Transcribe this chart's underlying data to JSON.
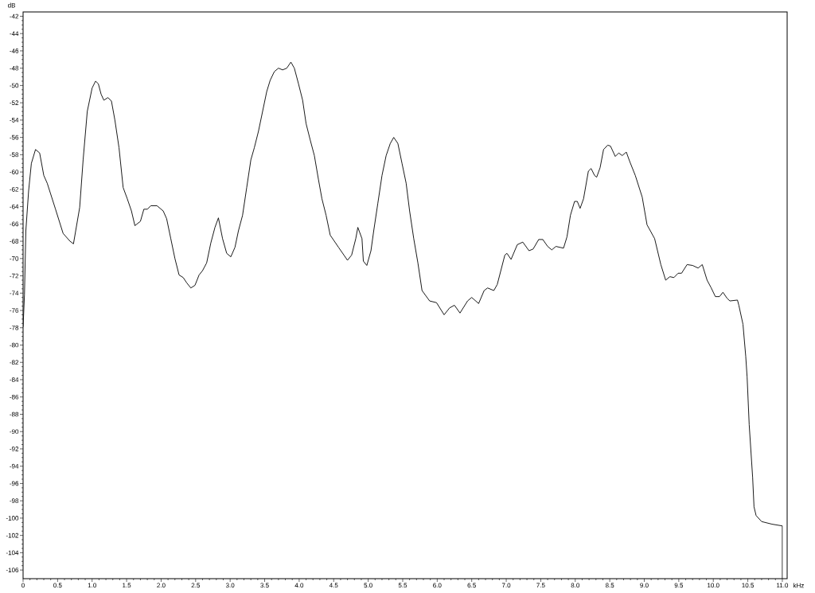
{
  "chart_data": {
    "type": "line",
    "xlabel": "kHz",
    "ylabel": "dB",
    "xlim": [
      0,
      11.07
    ],
    "ylim": [
      -107,
      -41.5
    ],
    "xticks": [
      0,
      0.5,
      {
        "value": 1,
        "label": "1.0"
      },
      1.5,
      {
        "value": 2,
        "label": "2.0"
      },
      2.5,
      {
        "value": 3,
        "label": "3.0"
      },
      3.5,
      {
        "value": 4,
        "label": "4.0"
      },
      4.5,
      {
        "value": 5,
        "label": "5.0"
      },
      5.5,
      {
        "value": 6,
        "label": "6.0"
      },
      6.5,
      {
        "value": 7,
        "label": "7.0"
      },
      7.5,
      {
        "value": 8,
        "label": "8.0"
      },
      8.5,
      {
        "value": 9,
        "label": "9.0"
      },
      9.5,
      {
        "value": 10,
        "label": "10.0"
      },
      10.5,
      {
        "value": 11,
        "label": "11.0"
      }
    ],
    "yticks": [
      -106,
      -104,
      -102,
      -100,
      -98,
      -96,
      -94,
      -92,
      -90,
      -88,
      -86,
      -84,
      -82,
      -80,
      -78,
      -76,
      -74,
      -72,
      -70,
      -68,
      -66,
      -64,
      -62,
      -60,
      -58,
      -56,
      -54,
      -52,
      -50,
      -48,
      -46,
      -44,
      -42
    ],
    "x": [
      0.0,
      0.02,
      0.04,
      0.08,
      0.12,
      0.18,
      0.24,
      0.3,
      0.35,
      0.47,
      0.58,
      0.68,
      0.73,
      0.82,
      0.87,
      0.93,
      1.0,
      1.05,
      1.09,
      1.13,
      1.17,
      1.23,
      1.28,
      1.33,
      1.39,
      1.45,
      1.51,
      1.57,
      1.62,
      1.7,
      1.75,
      1.8,
      1.85,
      1.94,
      2.03,
      2.08,
      2.14,
      2.2,
      2.26,
      2.32,
      2.37,
      2.43,
      2.49,
      2.55,
      2.6,
      2.66,
      2.72,
      2.78,
      2.83,
      2.89,
      2.95,
      3.01,
      3.07,
      3.12,
      3.18,
      3.24,
      3.3,
      3.35,
      3.41,
      3.47,
      3.53,
      3.58,
      3.64,
      3.7,
      3.76,
      3.82,
      3.88,
      3.93,
      3.99,
      4.05,
      4.1,
      4.16,
      4.22,
      4.28,
      4.33,
      4.39,
      4.45,
      4.57,
      4.7,
      4.76,
      4.82,
      4.85,
      4.91,
      4.93,
      4.98,
      5.04,
      5.08,
      5.14,
      5.2,
      5.26,
      5.32,
      5.37,
      5.43,
      5.49,
      5.55,
      5.6,
      5.66,
      5.72,
      5.78,
      5.89,
      5.99,
      6.1,
      6.18,
      6.25,
      6.33,
      6.44,
      6.5,
      6.6,
      6.68,
      6.73,
      6.82,
      6.87,
      6.98,
      7.01,
      7.07,
      7.16,
      7.24,
      7.33,
      7.39,
      7.47,
      7.53,
      7.6,
      7.66,
      7.72,
      7.83,
      7.88,
      7.93,
      7.99,
      8.03,
      8.07,
      8.12,
      8.19,
      8.23,
      8.28,
      8.31,
      8.36,
      8.41,
      8.47,
      8.51,
      8.58,
      8.63,
      8.68,
      8.74,
      8.79,
      8.87,
      8.97,
      9.04,
      9.15,
      9.24,
      9.31,
      9.37,
      9.43,
      9.49,
      9.54,
      9.62,
      9.7,
      9.78,
      9.84,
      9.91,
      9.97,
      10.03,
      10.09,
      10.14,
      10.2,
      10.24,
      10.35,
      10.37,
      10.43,
      10.47,
      10.49,
      10.52,
      10.57,
      10.59,
      10.62,
      10.7,
      10.85,
      11.0,
      11.0
    ],
    "series": [
      {
        "color": "#000000",
        "values": [
          -77.9,
          -74.2,
          -66.8,
          -62.2,
          -59.0,
          -57.4,
          -57.8,
          -60.4,
          -61.3,
          -64.3,
          -67.1,
          -68.0,
          -68.3,
          -64.1,
          -58.6,
          -53.0,
          -50.3,
          -49.5,
          -49.8,
          -51.0,
          -51.7,
          -51.4,
          -51.8,
          -54.0,
          -57.2,
          -61.8,
          -63.1,
          -64.5,
          -66.2,
          -65.7,
          -64.3,
          -64.3,
          -63.9,
          -63.9,
          -64.5,
          -65.4,
          -67.7,
          -70.0,
          -71.9,
          -72.2,
          -72.8,
          -73.4,
          -73.1,
          -71.9,
          -71.4,
          -70.5,
          -68.2,
          -66.4,
          -65.3,
          -67.7,
          -69.4,
          -69.8,
          -68.7,
          -66.8,
          -65.0,
          -61.8,
          -58.6,
          -57.2,
          -55.3,
          -53.0,
          -50.7,
          -49.4,
          -48.4,
          -48.0,
          -48.2,
          -48.0,
          -47.3,
          -48.0,
          -49.8,
          -51.7,
          -54.4,
          -56.3,
          -58.1,
          -60.9,
          -63.1,
          -65.0,
          -67.3,
          -68.7,
          -70.2,
          -69.6,
          -67.7,
          -66.4,
          -67.7,
          -70.3,
          -70.8,
          -69.1,
          -66.8,
          -63.6,
          -60.4,
          -58.1,
          -56.7,
          -56.0,
          -56.7,
          -59.0,
          -61.3,
          -64.5,
          -67.7,
          -70.5,
          -73.7,
          -74.9,
          -75.1,
          -76.5,
          -75.7,
          -75.4,
          -76.3,
          -74.9,
          -74.5,
          -75.2,
          -73.7,
          -73.4,
          -73.7,
          -73.0,
          -69.6,
          -69.4,
          -70.1,
          -68.4,
          -68.1,
          -69.1,
          -68.9,
          -67.8,
          -67.8,
          -68.6,
          -69.0,
          -68.6,
          -68.8,
          -67.5,
          -65.0,
          -63.4,
          -63.4,
          -64.2,
          -63.1,
          -59.9,
          -59.6,
          -60.4,
          -60.6,
          -59.5,
          -57.4,
          -56.9,
          -57.0,
          -58.2,
          -57.8,
          -58.1,
          -57.7,
          -58.8,
          -60.4,
          -62.9,
          -66.1,
          -67.7,
          -70.7,
          -72.5,
          -72.1,
          -72.2,
          -71.7,
          -71.7,
          -70.7,
          -70.8,
          -71.1,
          -70.7,
          -72.5,
          -73.4,
          -74.4,
          -74.4,
          -73.9,
          -74.6,
          -74.9,
          -74.8,
          -75.4,
          -77.6,
          -81.3,
          -83.7,
          -89.2,
          -95.3,
          -98.7,
          -99.7,
          -100.4,
          -100.7,
          -100.9,
          -107.0
        ]
      }
    ]
  }
}
